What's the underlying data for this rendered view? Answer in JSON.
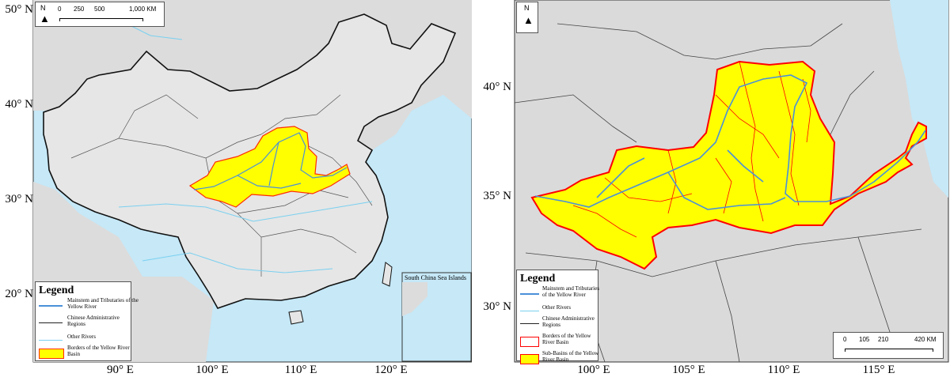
{
  "left_map": {
    "north_label": "N",
    "scale": {
      "ticks": [
        "0",
        "250",
        "500",
        "1,000 KM"
      ]
    },
    "latitudes": [
      "50° N",
      "40° N",
      "30° N",
      "20° N"
    ],
    "longitudes": [
      "90° E",
      "100° E",
      "110° E",
      "120° E"
    ],
    "inset_title": "South China Sea Islands",
    "legend": {
      "title": "Legend",
      "items": [
        {
          "label": "Mainstem and Tributaries of the Yellow River",
          "color": "#4a90d9"
        },
        {
          "label": "Chinese Administrative Regions",
          "color": "#222222"
        },
        {
          "label": "Other Rivers",
          "color": "#7ad0f0"
        },
        {
          "label": "Borders of the Yellow River Basin",
          "color": "#ffff00"
        }
      ]
    }
  },
  "right_map": {
    "north_label": "N",
    "scale": {
      "ticks": [
        "0",
        "105",
        "210",
        "420 KM"
      ]
    },
    "latitudes": [
      "40° N",
      "35° N",
      "30° N"
    ],
    "longitudes": [
      "100° E",
      "105° E",
      "110° E",
      "115° E"
    ],
    "legend": {
      "title": "Legend",
      "items": [
        {
          "label": "Mainstem and Tributaries of the Yellow River",
          "color": "#4a90d9"
        },
        {
          "label": "Other Rivers",
          "color": "#7ad0f0"
        },
        {
          "label": "Chinese Administrative Regions",
          "color": "#222222"
        },
        {
          "label": "Borders of the Yellow River Basin",
          "color": "#ff0000"
        },
        {
          "label": "Sub-Basins of the Yellow River Basin",
          "color": "#ffff00"
        }
      ]
    }
  },
  "colors": {
    "sea": "#c6e8f7",
    "land": "#d9d9d9",
    "basin": "#ffff00",
    "basin_border": "#ff0000",
    "river": "#4a90d9"
  }
}
